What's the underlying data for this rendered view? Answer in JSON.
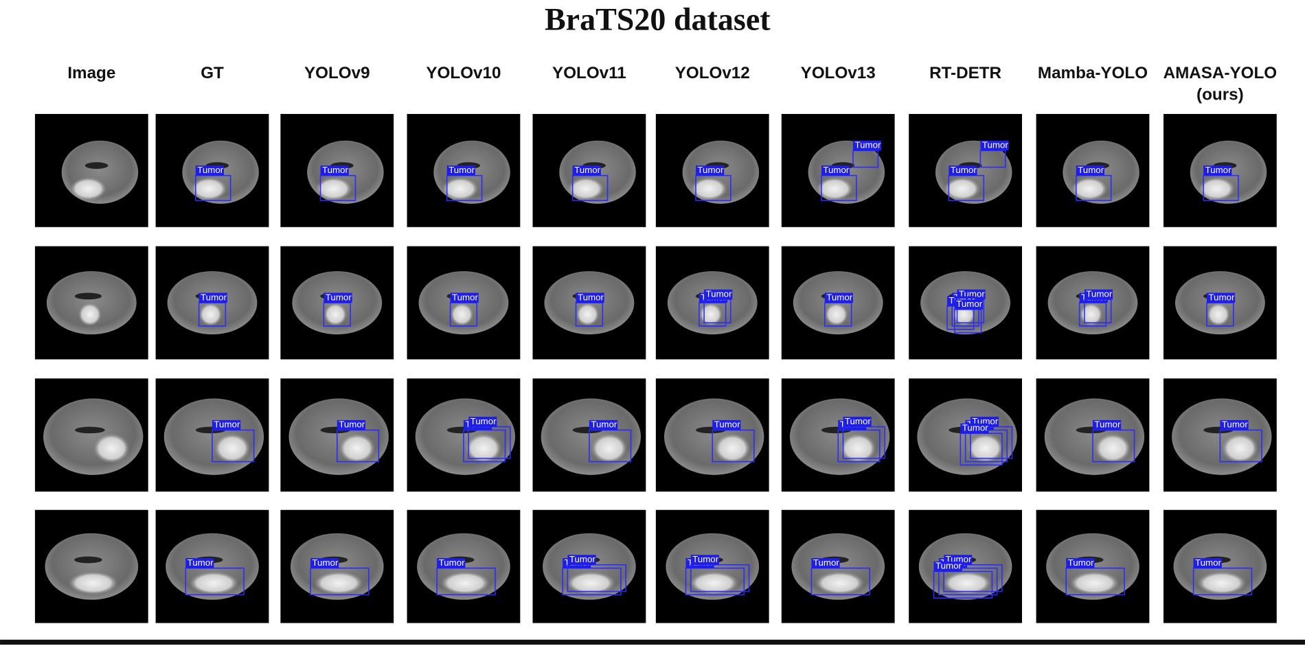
{
  "header": {
    "title": "BraTS20 dataset"
  },
  "columns": [
    [
      "Image"
    ],
    [
      "GT"
    ],
    [
      "YOLOv9"
    ],
    [
      "YOLOv10"
    ],
    [
      "YOLOv11"
    ],
    [
      "YOLOv12"
    ],
    [
      "YOLOv13"
    ],
    [
      "RT-DETR"
    ],
    [
      "Mamba-YOLO"
    ],
    [
      "AMASA-YOLO",
      "(ours)"
    ]
  ],
  "rows": [
    [
      [],
      [
        "Tumor"
      ],
      [
        "Tumor"
      ],
      [
        "Tumor"
      ],
      [
        "Tumor"
      ],
      [
        "Tumor"
      ],
      [
        "Tumor",
        "Tumor"
      ],
      [
        "Tumor",
        "Tumor"
      ],
      [
        "Tumor"
      ],
      [
        "Tumor"
      ]
    ],
    [
      [],
      [
        "Tumor"
      ],
      [
        "Tumor"
      ],
      [
        "Tumor"
      ],
      [
        "Tumor"
      ],
      [
        "Tumor",
        "Tumor"
      ],
      [
        "Tumor"
      ],
      [
        "Tumor",
        "Tumor",
        "Tumor",
        "Tumor"
      ],
      [
        "Tumor",
        "Tumor"
      ],
      [
        "Tumor"
      ]
    ],
    [
      [],
      [
        "Tumor"
      ],
      [
        "Tumor"
      ],
      [
        "Tumor",
        "Tumor"
      ],
      [
        "Tumor"
      ],
      [
        "Tumor"
      ],
      [
        "Tumor",
        "Tumor"
      ],
      [
        "Tumor",
        "Tumor",
        "Tumor"
      ],
      [
        "Tumor"
      ],
      [
        "Tumor"
      ]
    ],
    [
      [],
      [
        "Tumor"
      ],
      [
        "Tumor"
      ],
      [
        "Tumor"
      ],
      [
        "Tumor",
        "Tumor"
      ],
      [
        "Tumor",
        "Tumor"
      ],
      [
        "Tumor"
      ],
      [
        "Tumor",
        "Tumor",
        "Tumor"
      ],
      [
        "Tumor"
      ],
      [
        "Tumor"
      ]
    ]
  ]
}
